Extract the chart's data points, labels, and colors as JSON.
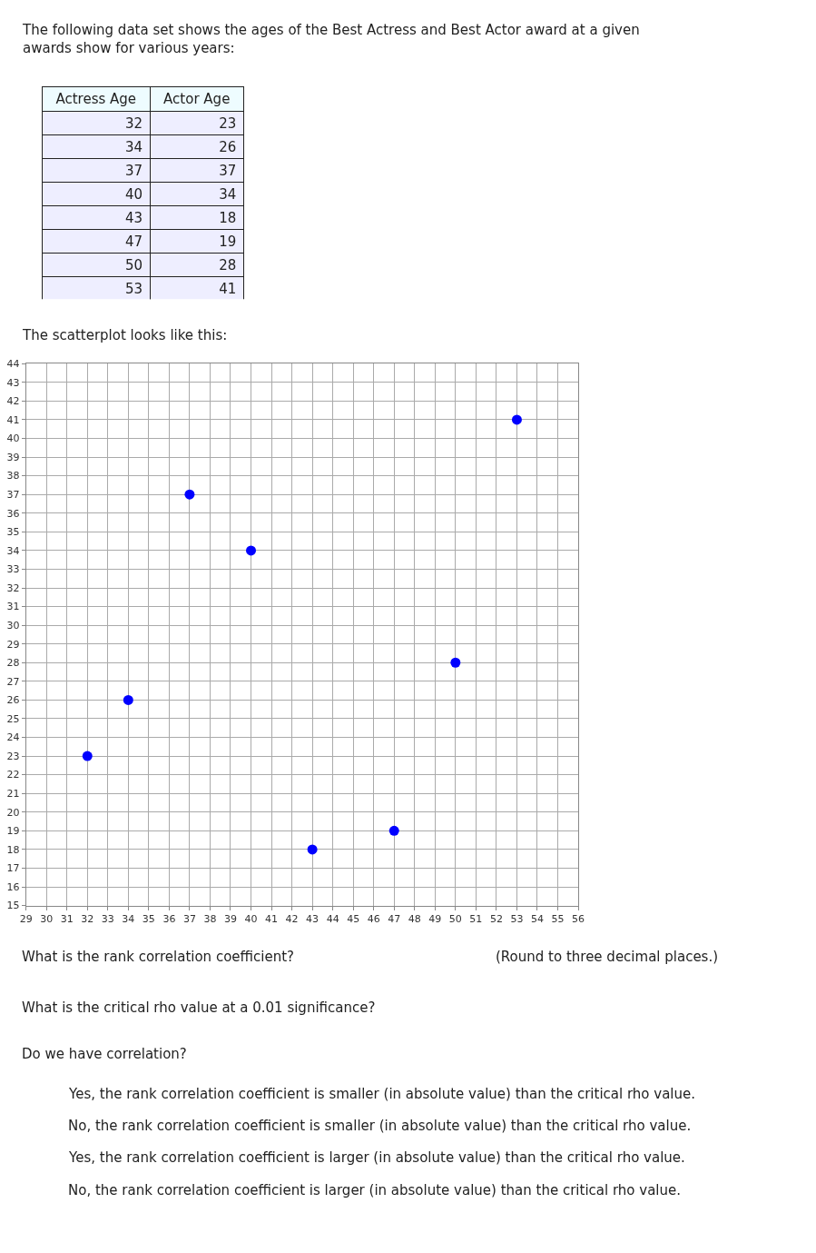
{
  "chart_data": {
    "type": "scatter",
    "title": "The following data set shows the ages of the Best Actress and Best Actor award at a given awards show for various years:",
    "subtitle": "The scatterplot looks like this:",
    "x": [
      32,
      34,
      37,
      40,
      43,
      47,
      50,
      53
    ],
    "values": [
      23,
      26,
      37,
      34,
      18,
      19,
      28,
      41
    ],
    "color": "#0000ff",
    "marker": "circle",
    "xlim": [
      29,
      56
    ],
    "xticks": [
      29,
      30,
      31,
      32,
      33,
      34,
      35,
      36,
      37,
      38,
      39,
      40,
      41,
      42,
      43,
      44,
      45,
      46,
      47,
      48,
      49,
      50,
      51,
      52,
      53,
      54,
      55,
      56
    ],
    "ylim": [
      15,
      44
    ],
    "yticks": [
      15,
      16,
      17,
      18,
      19,
      20,
      21,
      22,
      23,
      24,
      25,
      26,
      27,
      28,
      29,
      30,
      31,
      32,
      33,
      34,
      35,
      36,
      37,
      38,
      39,
      40,
      41,
      42,
      43,
      44
    ],
    "grid": true,
    "legend": false,
    "annotations": [
      "Actress Age",
      "Actor Age",
      "32",
      "23",
      "34",
      "26",
      "37",
      "37",
      "40",
      "34",
      "43",
      "18",
      "47",
      "19",
      "50",
      "28",
      "53",
      "41",
      "What is the rank correlation coefficient?",
      "(Round to three decimal places.)",
      "What is the critical rho value at a 0.01 significance?",
      "Do we have correlation?",
      "Yes, the rank correlation coefficient is smaller (in absolute value) than the critical rho value.",
      "No, the rank correlation coefficient is smaller (in absolute value) than the critical rho value.",
      "Yes, the rank correlation coefficient is larger (in absolute value) than the critical rho value.",
      "No, the rank correlation coefficient is larger (in absolute value) than the critical rho value."
    ]
  }
}
